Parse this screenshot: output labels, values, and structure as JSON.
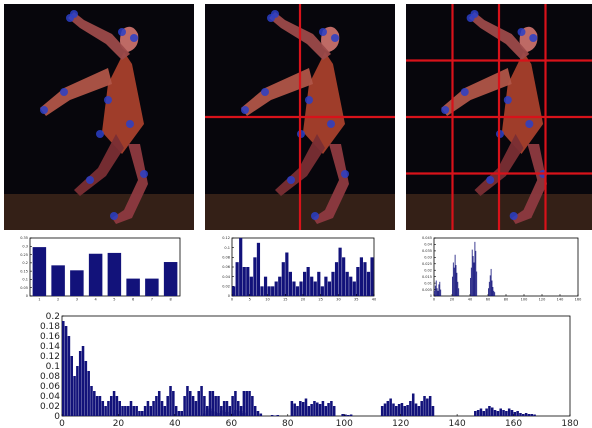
{
  "colors": {
    "bar": "#12127a",
    "grid": "#d8121a",
    "panel_bg": "#07060c",
    "axis": "#000000"
  },
  "icons": [
    "dancer-photo-full",
    "dancer-photo-grid-2x2",
    "dancer-photo-grid-4x4"
  ],
  "panels": [
    {
      "name": "photo-whole",
      "grid_divisions": 1
    },
    {
      "name": "photo-2x2",
      "grid_divisions": 2
    },
    {
      "name": "photo-4x4",
      "grid_divisions": 4
    }
  ],
  "chart_data": [
    {
      "type": "bar",
      "name": "histogram-1",
      "categories": [
        "1",
        "2",
        "3",
        "4",
        "5",
        "6",
        "7",
        "8"
      ],
      "values": [
        0.295,
        0.185,
        0.155,
        0.255,
        0.26,
        0.105,
        0.105,
        0.205
      ],
      "ylim": [
        0,
        0.35
      ],
      "yticks": [
        "0",
        "0.05",
        "0.1",
        "0.15",
        "0.2",
        "0.25",
        "0.3",
        "0.35"
      ],
      "grid": false
    },
    {
      "type": "bar",
      "name": "histogram-2",
      "values": [
        0.02,
        0.07,
        0.12,
        0.06,
        0.06,
        0.04,
        0.08,
        0.11,
        0.02,
        0.04,
        0.02,
        0.02,
        0.03,
        0.04,
        0.07,
        0.09,
        0.05,
        0.03,
        0.02,
        0.03,
        0.05,
        0.06,
        0.04,
        0.03,
        0.05,
        0.02,
        0.04,
        0.03,
        0.05,
        0.07,
        0.1,
        0.08,
        0.05,
        0.04,
        0.03,
        0.06,
        0.08,
        0.07,
        0.05,
        0.08
      ],
      "xticks": [
        "0",
        "5",
        "10",
        "15",
        "20",
        "25",
        "30",
        "35",
        "40"
      ],
      "xlim": [
        0,
        40
      ],
      "ylim": [
        0,
        0.12
      ],
      "yticks": [
        "0",
        "0.02",
        "0.04",
        "0.06",
        "0.08",
        "0.1",
        "0.12"
      ],
      "grid": false
    },
    {
      "type": "bar",
      "name": "histogram-3",
      "values": [
        0.004,
        0.008,
        0.012,
        0.006,
        0.004,
        0.009,
        0.011,
        0.005,
        0,
        0,
        0,
        0,
        0,
        0,
        0,
        0,
        0,
        0,
        0,
        0,
        0.015,
        0.026,
        0.022,
        0.032,
        0.024,
        0.018,
        0.011,
        0.006,
        0,
        0,
        0,
        0,
        0,
        0,
        0,
        0,
        0,
        0,
        0,
        0,
        0.014,
        0.022,
        0.036,
        0.031,
        0.026,
        0.042,
        0.035,
        0.019,
        0,
        0,
        0,
        0,
        0,
        0,
        0,
        0,
        0,
        0,
        0,
        0,
        0.006,
        0.011,
        0.016,
        0.021,
        0.012,
        0.007,
        0.004,
        0.003,
        0,
        0,
        0,
        0,
        0,
        0,
        0,
        0,
        0,
        0,
        0,
        0
      ],
      "xticks": [
        "0",
        "20",
        "40",
        "60",
        "80",
        "100",
        "120",
        "140",
        "160"
      ],
      "xlim": [
        0,
        160
      ],
      "ylim": [
        0,
        0.045
      ],
      "yticks": [
        "0",
        "0.005",
        "0.01",
        "0.015",
        "0.02",
        "0.025",
        "0.03",
        "0.035",
        "0.04",
        "0.045"
      ],
      "grid": false
    },
    {
      "type": "bar",
      "name": "histogram-4",
      "x_start": 0,
      "values": [
        0.19,
        0.18,
        0.16,
        0.12,
        0.08,
        0.1,
        0.13,
        0.14,
        0.11,
        0.09,
        0.06,
        0.05,
        0.04,
        0.04,
        0.03,
        0.02,
        0.03,
        0.04,
        0.05,
        0.04,
        0.03,
        0.02,
        0.02,
        0.02,
        0.03,
        0.02,
        0.02,
        0.01,
        0.01,
        0.02,
        0.03,
        0.02,
        0.03,
        0.04,
        0.05,
        0.03,
        0.02,
        0.04,
        0.06,
        0.05,
        0.02,
        0.01,
        0.01,
        0.04,
        0.06,
        0.05,
        0.04,
        0.03,
        0.05,
        0.06,
        0.04,
        0.02,
        0.05,
        0.05,
        0.04,
        0.04,
        0.02,
        0.03,
        0.03,
        0.02,
        0.04,
        0.05,
        0.03,
        0.02,
        0.05,
        0.05,
        0.05,
        0.04,
        0.02,
        0.01,
        0.005,
        0,
        0,
        0,
        0,
        0,
        0,
        0,
        0,
        0,
        0,
        0,
        0,
        0,
        0,
        0,
        0,
        0,
        0,
        0,
        0,
        0,
        0,
        0,
        0,
        0,
        0,
        0,
        0,
        0,
        0,
        0,
        0,
        0,
        0,
        0,
        0,
        0,
        0,
        0,
        0,
        0,
        0,
        0,
        0,
        0,
        0,
        0,
        0,
        0,
        0,
        0,
        0,
        0,
        0,
        0,
        0,
        0,
        0,
        0,
        0,
        0,
        0,
        0,
        0,
        0,
        0,
        0,
        0,
        0,
        0,
        0,
        0,
        0,
        0,
        0,
        0,
        0,
        0,
        0,
        0,
        0,
        0,
        0,
        0,
        0,
        0,
        0,
        0,
        0,
        0,
        0,
        0,
        0,
        0,
        0,
        0,
        0,
        0,
        0
      ],
      "segments": [
        {
          "x_start": 50,
          "values": [
            0.005,
            0.01,
            0.015,
            0.01,
            0.008,
            0.006,
            0.01,
            0.012,
            0.008,
            0.005
          ]
        },
        {
          "x_start": 59,
          "values": [
            0.01,
            0.005,
            0.012,
            0.008,
            0.01,
            0.006,
            0.008
          ]
        },
        {
          "x_start": 74,
          "values": [
            0.002,
            0.001,
            0.002
          ]
        },
        {
          "x_start": 81,
          "values": [
            0.03,
            0.025,
            0.02,
            0.03,
            0.028,
            0.035,
            0.02,
            0.024,
            0.03,
            0.027,
            0.024,
            0.03,
            0.02,
            0.026,
            0.03,
            0.02
          ]
        },
        {
          "x_start": 99,
          "values": [
            0.004,
            0.003,
            0.002,
            0.003
          ]
        },
        {
          "x_start": 113,
          "values": [
            0.02,
            0.025,
            0.03,
            0.035,
            0.025,
            0.02,
            0.024,
            0.026,
            0.02,
            0.022,
            0.03,
            0.045,
            0.025,
            0.02,
            0.03,
            0.04,
            0.035,
            0.04,
            0.02
          ]
        },
        {
          "x_start": 146,
          "values": [
            0.01,
            0.012,
            0.015,
            0.01,
            0.015,
            0.02,
            0.017,
            0.012,
            0.01,
            0.015,
            0.012,
            0.01,
            0.015,
            0.012,
            0.008,
            0.01,
            0.006,
            0.004,
            0.006,
            0.004,
            0.004,
            0.003
          ]
        }
      ],
      "xticks": [
        "0",
        "20",
        "40",
        "60",
        "80",
        "100",
        "120",
        "140",
        "160",
        "180"
      ],
      "xlim": [
        0,
        180
      ],
      "ylim": [
        0,
        0.2
      ],
      "yticks": [
        "0",
        "0.02",
        "0.04",
        "0.06",
        "0.08",
        "0.1",
        "0.12",
        "0.14",
        "0.16",
        "0.18",
        "0.2"
      ],
      "grid": false
    }
  ]
}
